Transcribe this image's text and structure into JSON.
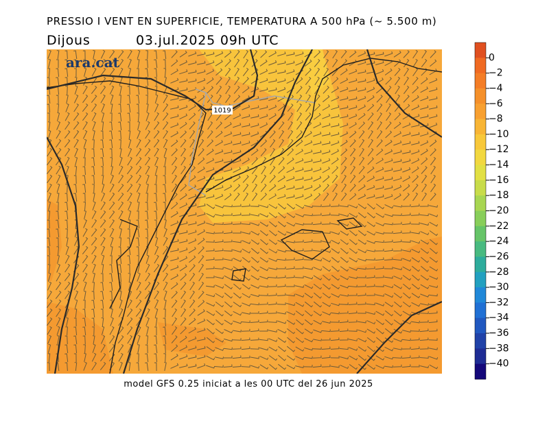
{
  "header": {
    "title": "PRESSIO I VENT EN SUPERFICIE, TEMPERATURA A 500 hPa (~ 5.500 m)",
    "day": "Dijous",
    "datetime": "03.jul.2025 09h  UTC"
  },
  "map": {
    "logo": "ara.cat",
    "isobar_label": "1019"
  },
  "footer": "model GFS 0.25 iniciat a les 00 UTC del 26 jun 2025",
  "colorbar": {
    "labels": [
      "0",
      "−2",
      "−4",
      "−6",
      "−8",
      "−10",
      "−12",
      "−14",
      "−16",
      "−18",
      "−20",
      "−22",
      "−24",
      "−26",
      "−28",
      "−30",
      "−32",
      "−34",
      "−36",
      "−38",
      "−40"
    ],
    "colors": [
      "#e05020",
      "#f06a22",
      "#f47d26",
      "#f5902a",
      "#f8a030",
      "#f8b535",
      "#f8c83a",
      "#f2d840",
      "#e2e044",
      "#c8dc4a",
      "#a8d652",
      "#88ce5a",
      "#66c468",
      "#48ba80",
      "#2eac9c",
      "#22a0c0",
      "#2088d8",
      "#2070d4",
      "#2058c0",
      "#2042a8",
      "#1e2c94",
      "#14087a"
    ]
  }
}
